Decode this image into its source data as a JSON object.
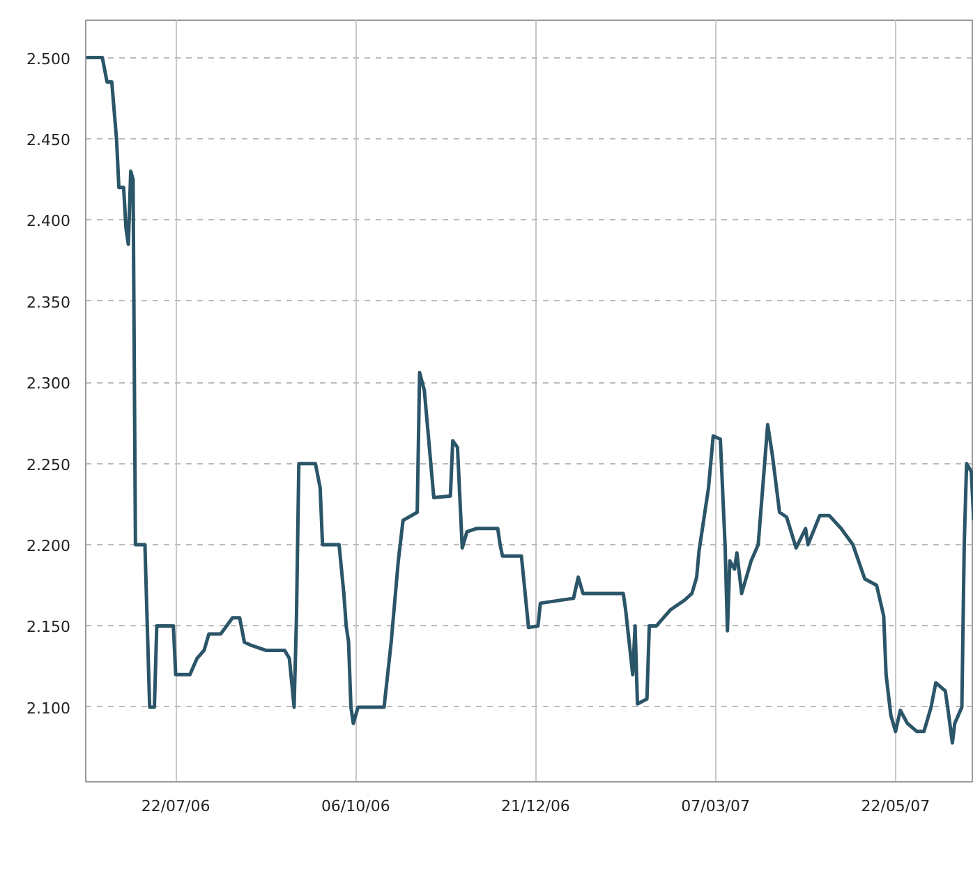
{
  "chart_data": {
    "type": "line",
    "line_style": "solid",
    "grid": true,
    "xlim": [
      "2006-06-14",
      "2007-06-24"
    ],
    "xticks": [
      {
        "value": "2006-07-22",
        "label": "22/07/06"
      },
      {
        "value": "2006-10-06",
        "label": "06/10/06"
      },
      {
        "value": "2006-12-21",
        "label": "21/12/06"
      },
      {
        "value": "2007-03-07",
        "label": "07/03/07"
      },
      {
        "value": "2007-05-22",
        "label": "22/05/07"
      }
    ],
    "ylim": [
      2.054,
      2.523
    ],
    "yticks": [
      {
        "value": 2.1,
        "label": "2.100"
      },
      {
        "value": 2.15,
        "label": "2.150"
      },
      {
        "value": 2.2,
        "label": "2.200"
      },
      {
        "value": 2.25,
        "label": "2.250"
      },
      {
        "value": 2.3,
        "label": "2.300"
      },
      {
        "value": 2.35,
        "label": "2.350"
      },
      {
        "value": 2.4,
        "label": "2.400"
      },
      {
        "value": 2.45,
        "label": "2.450"
      },
      {
        "value": 2.5,
        "label": "2.500"
      }
    ],
    "series": [
      {
        "color": "#2b5568",
        "x": [
          "2006-06-14",
          "2006-06-21",
          "2006-06-23",
          "2006-06-25",
          "2006-06-27",
          "2006-06-28",
          "2006-06-30",
          "2006-07-01",
          "2006-07-02",
          "2006-07-03",
          "2006-07-04",
          "2006-07-05",
          "2006-07-09",
          "2006-07-11",
          "2006-07-13",
          "2006-07-14",
          "2006-07-21",
          "2006-07-22",
          "2006-07-28",
          "2006-07-31",
          "2006-08-03",
          "2006-08-05",
          "2006-08-10",
          "2006-08-15",
          "2006-08-18",
          "2006-08-20",
          "2006-08-23",
          "2006-08-29",
          "2006-09-06",
          "2006-09-08",
          "2006-09-10",
          "2006-09-11",
          "2006-09-12",
          "2006-09-19",
          "2006-09-21",
          "2006-09-22",
          "2006-09-29",
          "2006-10-01",
          "2006-10-02",
          "2006-10-03",
          "2006-10-04",
          "2006-10-05",
          "2006-10-07",
          "2006-10-18",
          "2006-10-21",
          "2006-10-24",
          "2006-10-26",
          "2006-11-01",
          "2006-11-02",
          "2006-11-04",
          "2006-11-08",
          "2006-11-15",
          "2006-11-16",
          "2006-11-18",
          "2006-11-20",
          "2006-11-22",
          "2006-11-26",
          "2006-12-05",
          "2006-12-06",
          "2006-12-07",
          "2006-12-15",
          "2006-12-18",
          "2006-12-22",
          "2006-12-23",
          "2007-01-06",
          "2007-01-08",
          "2007-01-10",
          "2007-01-27",
          "2007-01-28",
          "2007-01-31",
          "2007-02-01",
          "2007-02-02",
          "2007-02-06",
          "2007-02-07",
          "2007-02-10",
          "2007-02-16",
          "2007-02-22",
          "2007-02-25",
          "2007-02-27",
          "2007-02-28",
          "2007-03-04",
          "2007-03-06",
          "2007-03-09",
          "2007-03-11",
          "2007-03-12",
          "2007-03-13",
          "2007-03-15",
          "2007-03-16",
          "2007-03-18",
          "2007-03-21",
          "2007-03-22",
          "2007-03-25",
          "2007-03-29",
          "2007-03-31",
          "2007-04-03",
          "2007-04-06",
          "2007-04-10",
          "2007-04-14",
          "2007-04-15",
          "2007-04-20",
          "2007-04-24",
          "2007-04-29",
          "2007-05-04",
          "2007-05-09",
          "2007-05-14",
          "2007-05-17",
          "2007-05-18",
          "2007-05-20",
          "2007-05-22",
          "2007-05-24",
          "2007-05-27",
          "2007-05-31",
          "2007-06-03",
          "2007-06-06",
          "2007-06-08",
          "2007-06-12",
          "2007-06-13",
          "2007-06-15",
          "2007-06-16",
          "2007-06-19",
          "2007-06-20",
          "2007-06-21",
          "2007-06-23",
          "2007-06-24"
        ],
        "values": [
          2.5,
          2.5,
          2.485,
          2.485,
          2.45,
          2.42,
          2.42,
          2.395,
          2.385,
          2.43,
          2.425,
          2.2,
          2.2,
          2.1,
          2.1,
          2.15,
          2.15,
          2.12,
          2.12,
          2.13,
          2.135,
          2.145,
          2.145,
          2.155,
          2.155,
          2.14,
          2.138,
          2.135,
          2.135,
          2.13,
          2.1,
          2.155,
          2.25,
          2.25,
          2.235,
          2.2,
          2.2,
          2.17,
          2.15,
          2.14,
          2.1,
          2.09,
          2.1,
          2.1,
          2.14,
          2.19,
          2.215,
          2.22,
          2.306,
          2.295,
          2.229,
          2.23,
          2.264,
          2.26,
          2.198,
          2.208,
          2.21,
          2.21,
          2.2,
          2.193,
          2.193,
          2.149,
          2.15,
          2.164,
          2.167,
          2.18,
          2.17,
          2.17,
          2.16,
          2.12,
          2.15,
          2.102,
          2.105,
          2.15,
          2.15,
          2.16,
          2.166,
          2.17,
          2.18,
          2.196,
          2.235,
          2.267,
          2.265,
          2.2,
          2.147,
          2.19,
          2.185,
          2.195,
          2.17,
          2.185,
          2.19,
          2.2,
          2.274,
          2.255,
          2.22,
          2.217,
          2.198,
          2.21,
          2.2,
          2.218,
          2.218,
          2.21,
          2.2,
          2.179,
          2.175,
          2.156,
          2.12,
          2.095,
          2.085,
          2.098,
          2.09,
          2.085,
          2.085,
          2.1,
          2.115,
          2.11,
          2.1,
          2.078,
          2.09,
          2.1,
          2.2,
          2.25,
          2.245,
          2.215
        ]
      }
    ]
  }
}
